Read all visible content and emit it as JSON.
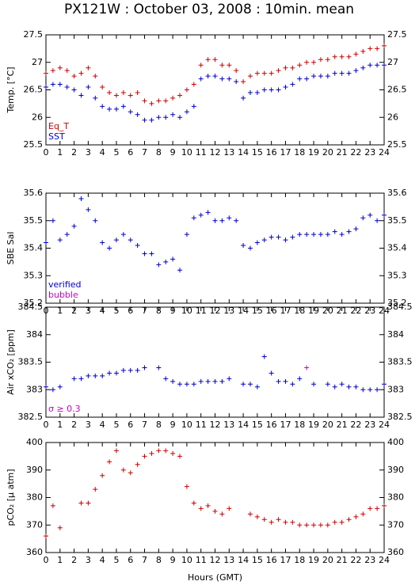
{
  "title": "PX121W : October 03, 2008 : 10min. mean",
  "chart_data": [
    {
      "type": "scatter",
      "ylabel": "Temp. [°C]",
      "legend": "lower left",
      "x": [
        0,
        0.5,
        1,
        1.5,
        2,
        2.5,
        3,
        3.5,
        4,
        4.5,
        5,
        5.5,
        6,
        6.5,
        7,
        7.5,
        8,
        8.5,
        9,
        9.5,
        10,
        10.5,
        11,
        11.5,
        12,
        12.5,
        13,
        13.5,
        14,
        14.5,
        15,
        15.5,
        16,
        16.5,
        17,
        17.5,
        18,
        18.5,
        19,
        19.5,
        20,
        20.5,
        21,
        21.5,
        22,
        22.5,
        23,
        23.5,
        24
      ],
      "series": [
        {
          "name": "Eq_T",
          "color": "#cc0000",
          "values": [
            26.8,
            26.85,
            26.9,
            26.85,
            26.75,
            26.8,
            26.9,
            26.75,
            26.55,
            26.45,
            26.4,
            26.45,
            26.4,
            26.45,
            26.3,
            26.25,
            26.3,
            26.3,
            26.35,
            26.4,
            26.5,
            26.6,
            26.95,
            27.05,
            27.05,
            26.95,
            26.95,
            26.85,
            26.65,
            26.75,
            26.8,
            26.8,
            26.8,
            26.85,
            26.9,
            26.9,
            26.95,
            27.0,
            27.0,
            27.05,
            27.05,
            27.1,
            27.1,
            27.1,
            27.15,
            27.2,
            27.25,
            27.25,
            27.3
          ]
        },
        {
          "name": "SST",
          "color": "#0000cc",
          "values": [
            26.55,
            26.6,
            26.6,
            26.55,
            26.5,
            26.4,
            26.55,
            26.35,
            26.2,
            26.15,
            26.15,
            26.2,
            26.1,
            26.05,
            25.95,
            25.95,
            26.0,
            26.0,
            26.05,
            26.0,
            26.1,
            26.2,
            26.7,
            26.75,
            26.75,
            26.7,
            26.7,
            26.65,
            26.35,
            26.45,
            26.45,
            26.5,
            26.5,
            26.5,
            26.55,
            26.6,
            26.7,
            26.7,
            26.75,
            26.75,
            26.75,
            26.8,
            26.8,
            26.8,
            26.85,
            26.9,
            26.95,
            26.95,
            26.95
          ]
        }
      ],
      "xlim": [
        0,
        24
      ],
      "xticks": [
        0,
        1,
        2,
        3,
        4,
        5,
        6,
        7,
        8,
        9,
        10,
        11,
        12,
        13,
        14,
        15,
        16,
        17,
        18,
        19,
        20,
        21,
        22,
        23,
        24
      ],
      "ylim": [
        25.5,
        27.5
      ],
      "yticks": [
        25.5,
        26,
        26.5,
        27,
        27.5
      ]
    },
    {
      "type": "scatter",
      "ylabel": "SBE Sal",
      "legend": "lower left",
      "x": [
        0,
        0.5,
        1,
        1.5,
        2,
        2.5,
        3,
        3.5,
        4,
        4.5,
        5,
        5.5,
        6,
        6.5,
        7,
        7.5,
        8,
        8.5,
        9,
        9.5,
        10,
        10.5,
        11,
        11.5,
        12,
        12.5,
        13,
        13.5,
        14,
        14.5,
        15,
        15.5,
        16,
        16.5,
        17,
        17.5,
        18,
        18.5,
        19,
        19.5,
        20,
        20.5,
        21,
        21.5,
        22,
        22.5,
        23,
        23.5,
        24
      ],
      "series": [
        {
          "name": "verified",
          "color": "#0000cc",
          "values": [
            35.42,
            35.5,
            35.43,
            35.45,
            35.48,
            35.58,
            35.54,
            35.5,
            35.42,
            35.4,
            35.43,
            35.45,
            35.43,
            35.41,
            35.38,
            35.38,
            35.34,
            35.35,
            35.36,
            35.32,
            35.45,
            35.51,
            35.52,
            35.53,
            35.5,
            35.5,
            35.51,
            35.5,
            35.41,
            35.4,
            35.42,
            35.43,
            35.44,
            35.44,
            35.43,
            35.44,
            35.45,
            35.45,
            35.45,
            35.45,
            35.45,
            35.46,
            35.45,
            35.46,
            35.47,
            35.51,
            35.52,
            35.5,
            35.52
          ]
        },
        {
          "name": "bubble",
          "color": "#cc00cc",
          "values": [
            null,
            null,
            null,
            null,
            null,
            null,
            null,
            null,
            null,
            null,
            null,
            null,
            null,
            null,
            null,
            null,
            null,
            null,
            null,
            null,
            null,
            null,
            null,
            null,
            null,
            null,
            null,
            null,
            null,
            null,
            null,
            null,
            null,
            null,
            null,
            null,
            null,
            null,
            null,
            null,
            null,
            null,
            null,
            null,
            null,
            null,
            null,
            null,
            null
          ]
        }
      ],
      "xlim": [
        0,
        24
      ],
      "xticks": [
        0,
        1,
        2,
        3,
        4,
        5,
        6,
        7,
        8,
        9,
        10,
        11,
        12,
        13,
        14,
        15,
        16,
        17,
        18,
        19,
        20,
        21,
        22,
        23,
        24
      ],
      "ylim": [
        35.2,
        35.6
      ],
      "yticks": [
        35.2,
        35.3,
        35.4,
        35.5,
        35.6
      ]
    },
    {
      "type": "scatter",
      "ylabel": "Air xCO₂ [ppm]",
      "legend": "lower left",
      "x": [
        0,
        0.5,
        1,
        1.5,
        2,
        2.5,
        3,
        3.5,
        4,
        4.5,
        5,
        5.5,
        6,
        6.5,
        7,
        7.5,
        8,
        8.5,
        9,
        9.5,
        10,
        10.5,
        11,
        11.5,
        12,
        12.5,
        13,
        13.5,
        14,
        14.5,
        15,
        15.5,
        16,
        16.5,
        17,
        17.5,
        18,
        18.5,
        19,
        19.5,
        20,
        20.5,
        21,
        21.5,
        22,
        22.5,
        23,
        23.5,
        24
      ],
      "series": [
        {
          "color": "#0000cc",
          "values": [
            383.05,
            383.0,
            383.05,
            null,
            383.2,
            383.2,
            383.25,
            383.25,
            383.25,
            383.3,
            383.3,
            383.35,
            383.35,
            383.35,
            383.4,
            null,
            383.4,
            383.2,
            383.15,
            383.1,
            383.1,
            383.1,
            383.15,
            383.15,
            383.15,
            383.15,
            383.2,
            null,
            383.1,
            383.1,
            383.05,
            383.6,
            383.3,
            383.15,
            383.15,
            383.1,
            383.2,
            null,
            383.1,
            null,
            383.1,
            383.05,
            383.1,
            383.05,
            383.05,
            383.0,
            383.0,
            383.0,
            383.1
          ]
        },
        {
          "name": "σ ≥ 0.3",
          "color": "#cc00cc",
          "values": [
            null,
            null,
            null,
            null,
            null,
            null,
            null,
            null,
            null,
            null,
            null,
            null,
            null,
            null,
            null,
            null,
            null,
            null,
            null,
            null,
            null,
            null,
            null,
            null,
            null,
            null,
            null,
            null,
            null,
            null,
            null,
            null,
            null,
            null,
            null,
            null,
            null,
            383.4,
            null,
            null,
            null,
            null,
            null,
            null,
            null,
            null,
            null,
            null,
            null
          ]
        }
      ],
      "xlim": [
        0,
        24
      ],
      "xticks": [
        0,
        1,
        2,
        3,
        4,
        5,
        6,
        7,
        8,
        9,
        10,
        11,
        12,
        13,
        14,
        15,
        16,
        17,
        18,
        19,
        20,
        21,
        22,
        23,
        24
      ],
      "ylim": [
        382.5,
        384.5
      ],
      "yticks": [
        382.5,
        383,
        383.5,
        384,
        384.5
      ]
    },
    {
      "type": "scatter",
      "ylabel": "pCO₂ [μ atm]",
      "xlabel": "Hours (GMT)",
      "x": [
        0,
        0.5,
        1,
        1.5,
        2,
        2.5,
        3,
        3.5,
        4,
        4.5,
        5,
        5.5,
        6,
        6.5,
        7,
        7.5,
        8,
        8.5,
        9,
        9.5,
        10,
        10.5,
        11,
        11.5,
        12,
        12.5,
        13,
        13.5,
        14,
        14.5,
        15,
        15.5,
        16,
        16.5,
        17,
        17.5,
        18,
        18.5,
        19,
        19.5,
        20,
        20.5,
        21,
        21.5,
        22,
        22.5,
        23,
        23.5,
        24
      ],
      "series": [
        {
          "color": "#cc0000",
          "values": [
            366,
            377,
            369,
            null,
            null,
            378,
            378,
            383,
            388,
            393,
            397,
            390,
            389,
            392,
            395,
            396,
            397,
            397,
            396,
            395,
            384,
            378,
            376,
            377,
            375,
            374,
            376,
            null,
            null,
            374,
            373,
            372,
            371,
            372,
            371,
            371,
            370,
            370,
            370,
            370,
            370,
            371,
            371,
            372,
            373,
            374,
            376,
            376,
            377
          ]
        }
      ],
      "xlim": [
        0,
        24
      ],
      "xticks": [
        0,
        1,
        2,
        3,
        4,
        5,
        6,
        7,
        8,
        9,
        10,
        11,
        12,
        13,
        14,
        15,
        16,
        17,
        18,
        19,
        20,
        21,
        22,
        23,
        24
      ],
      "ylim": [
        360,
        400
      ],
      "yticks": [
        360,
        370,
        380,
        390,
        400
      ]
    }
  ]
}
